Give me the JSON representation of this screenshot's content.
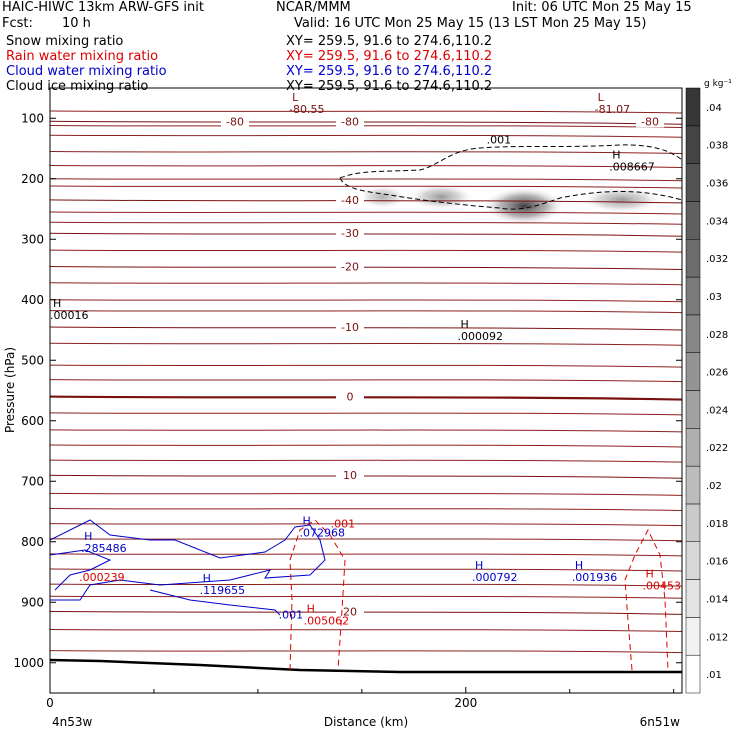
{
  "header": {
    "title": "HAIC-HIWC 13km ARW-GFS init",
    "org": "NCAR/MMM",
    "init": "Init: 06 UTC Mon 25 May 15",
    "fcst_label": "Fcst:",
    "fcst_value": "10 h",
    "valid": "Valid: 16 UTC Mon 25 May 15 (13 LST Mon 25 May 15)",
    "fields": [
      {
        "label": "Snow mixing ratio",
        "xy": "XY= 259.5, 91.6 to 274.6,110.2",
        "color": "#000000"
      },
      {
        "label": "Rain water mixing ratio",
        "xy": "XY= 259.5, 91.6 to 274.6,110.2",
        "color": "#dd0000"
      },
      {
        "label": "Cloud water mixing ratio",
        "xy": "XY= 259.5, 91.6 to 274.6,110.2",
        "color": "#0000cc"
      },
      {
        "label": "Cloud ice mixing ratio",
        "xy": "XY= 259.5, 91.6 to 274.6,110.2",
        "color": "#000000"
      }
    ]
  },
  "chart_data": {
    "type": "heatmap",
    "xlabel": "Distance (km)",
    "ylabel": "Pressure (hPa)",
    "xlim": [
      0,
      304
    ],
    "ylim": [
      1050,
      50
    ],
    "x_ticks": [
      0,
      200
    ],
    "y_ticks": [
      100,
      200,
      300,
      400,
      500,
      600,
      700,
      800,
      900,
      1000
    ],
    "x_endpoint_labels": [
      "4n53w",
      "6n51w"
    ],
    "colorbar": {
      "unit": "g kg⁻¹",
      "ticks": [
        ".01",
        ".012",
        ".014",
        ".016",
        ".018",
        ".02",
        ".022",
        ".024",
        ".026",
        ".028",
        ".03",
        ".032",
        ".034",
        ".036",
        ".038",
        ".04"
      ]
    },
    "temperature_contours": [
      {
        "label": "-80",
        "p": 105
      },
      {
        "label": "-40",
        "p": 235
      },
      {
        "label": "-30",
        "p": 290
      },
      {
        "label": "-20",
        "p": 345
      },
      {
        "label": "-10",
        "p": 445
      },
      {
        "label": "0",
        "p": 560
      },
      {
        "label": "10",
        "p": 690
      },
      {
        "label": "20",
        "p": 915
      }
    ],
    "annotations": [
      {
        "kind": "L",
        "value": "-80.55",
        "x": 115,
        "p": 85,
        "color": "#7a1010"
      },
      {
        "kind": "L",
        "value": "-81.07",
        "x": 262,
        "p": 85,
        "color": "#7a1010"
      },
      {
        "kind": "H",
        "value": ".008667",
        "x": 269,
        "p": 180,
        "color": "#000000"
      },
      {
        "kind": "H",
        "value": ".00016",
        "x": 0,
        "p": 425,
        "color": "#000000"
      },
      {
        "kind": "H",
        "value": ".000092",
        "x": 196,
        "p": 460,
        "color": "#000000"
      },
      {
        "kind": "H",
        "value": ".285486",
        "x": 15,
        "p": 810,
        "color": "#0000cc"
      },
      {
        "kind": "",
        "value": ".000239",
        "x": 14,
        "p": 858,
        "color": "#dd0000"
      },
      {
        "kind": "H",
        "value": ".119655",
        "x": 72,
        "p": 880,
        "color": "#0000cc"
      },
      {
        "kind": "H",
        "value": ".072968",
        "x": 120,
        "p": 785,
        "color": "#0000cc"
      },
      {
        "kind": "",
        "value": ".001",
        "x": 135,
        "p": 770,
        "color": "#dd0000"
      },
      {
        "kind": "H",
        "value": ".005062",
        "x": 122,
        "p": 930,
        "color": "#dd0000"
      },
      {
        "kind": "H",
        "value": ".000792",
        "x": 203,
        "p": 858,
        "color": "#0000cc"
      },
      {
        "kind": "H",
        "value": ".001936",
        "x": 251,
        "p": 858,
        "color": "#0000cc"
      },
      {
        "kind": "H",
        "value": ".004534",
        "x": 285,
        "p": 872,
        "color": "#dd0000"
      },
      {
        "kind": "",
        "value": ".001",
        "x": 110,
        "p": 920,
        "color": "#0000cc"
      },
      {
        "kind": "",
        "value": ".001",
        "x": 210,
        "p": 135,
        "color": "#000000"
      }
    ],
    "snow_blobs": [
      {
        "x": 160,
        "p": 230,
        "rx": 12,
        "rp": 20,
        "intensity": 0.35
      },
      {
        "x": 188,
        "p": 230,
        "rx": 16,
        "rp": 22,
        "intensity": 0.45
      },
      {
        "x": 228,
        "p": 245,
        "rx": 20,
        "rp": 32,
        "intensity": 0.85
      },
      {
        "x": 275,
        "p": 235,
        "rx": 20,
        "rp": 22,
        "intensity": 0.45
      }
    ]
  }
}
